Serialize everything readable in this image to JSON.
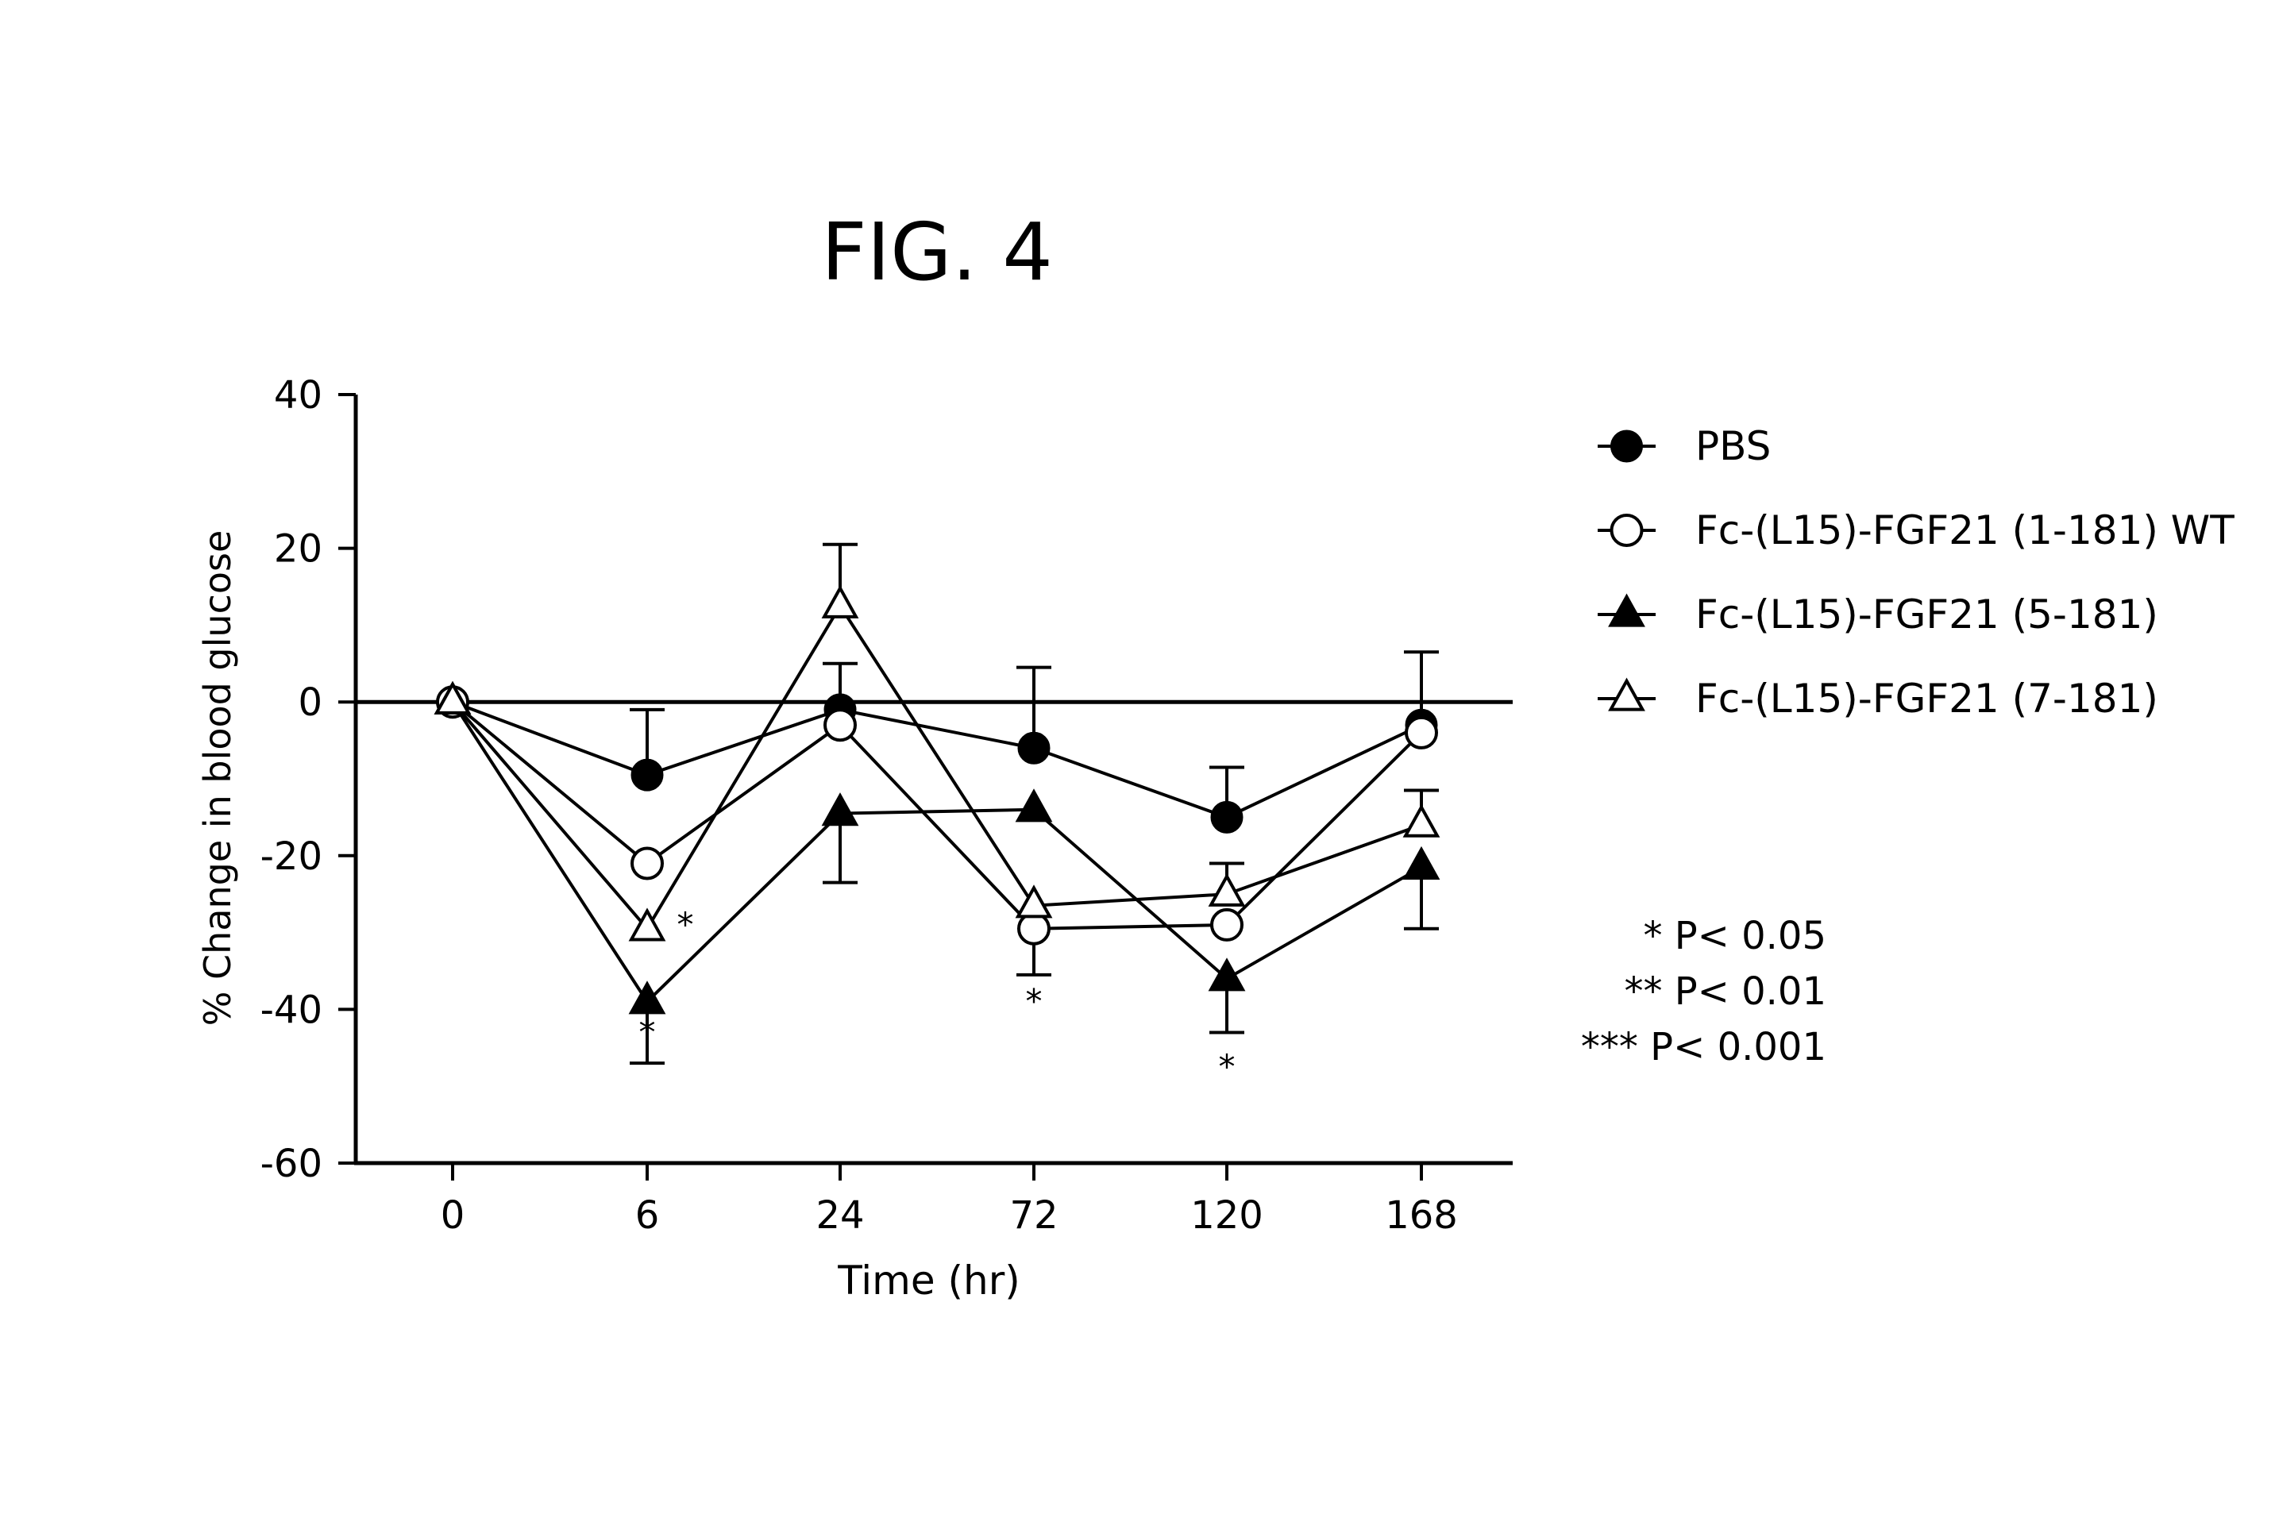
{
  "figure_label": "FIG. 4",
  "chart_data": {
    "type": "line",
    "title": "",
    "xlabel": "Time (hr)",
    "ylabel": "% Change in blood glucose",
    "categories": [
      "0",
      "6",
      "24",
      "72",
      "120",
      "168"
    ],
    "ylim": [
      -60,
      40
    ],
    "yticks": [
      40,
      20,
      0,
      -20,
      -40,
      -60
    ],
    "grid": false,
    "zero_line": true,
    "legend_position": "right",
    "series": [
      {
        "name": "PBS",
        "marker": "filled-circle",
        "values": [
          0,
          -9.5,
          -1,
          -6,
          -15,
          -3
        ],
        "error": [
          0,
          8.5,
          6,
          10.5,
          6.5,
          9.5
        ]
      },
      {
        "name": "Fc-(L15)-FGF21 (1-181) WT",
        "marker": "open-circle",
        "values": [
          0,
          -21,
          -3,
          -29.5,
          -29,
          -4
        ],
        "error": [
          0,
          0,
          0,
          6,
          0,
          0
        ]
      },
      {
        "name": "Fc-(L15)-FGF21 (5-181)",
        "marker": "filled-triangle",
        "values": [
          0,
          -39,
          -14.5,
          -14,
          -36,
          -21.5
        ],
        "error": [
          0,
          8,
          9,
          0,
          7,
          8
        ]
      },
      {
        "name": "Fc-(L15)-FGF21 (7-181)",
        "marker": "open-triangle",
        "values": [
          0,
          -29.5,
          12.5,
          -26.5,
          -25,
          -16
        ],
        "error": [
          0,
          0,
          8,
          0,
          4,
          4.5
        ]
      }
    ],
    "annotations": [
      {
        "text": "*",
        "x": "6",
        "y": -43
      },
      {
        "text": "*",
        "x": "6",
        "y": -29,
        "offset": "right"
      },
      {
        "text": "*",
        "x": "72",
        "y": -39
      },
      {
        "text": "*",
        "x": "120",
        "y": -47.5
      }
    ],
    "significance_legend": [
      "* P< 0.05",
      "** P< 0.01",
      "*** P< 0.001"
    ]
  }
}
